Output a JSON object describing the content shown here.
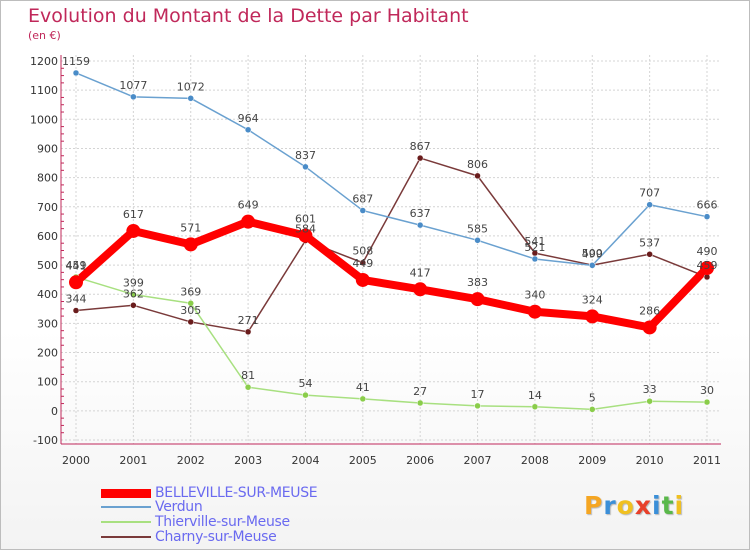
{
  "chart_data": {
    "type": "line",
    "title": "Evolution du Montant de la Dette par Habitant",
    "subtitle": "(en €)",
    "x": [
      "2000",
      "2001",
      "2002",
      "2003",
      "2004",
      "2005",
      "2006",
      "2007",
      "2008",
      "2009",
      "2010",
      "2011"
    ],
    "ylim": [
      -100,
      1200
    ],
    "yticks": [
      -100,
      0,
      100,
      200,
      300,
      400,
      500,
      600,
      700,
      800,
      900,
      1000,
      1100,
      1200
    ],
    "grid": true,
    "legend_position": "bottom-left",
    "series": [
      {
        "name": "BELLEVILLE-SUR-MEUSE",
        "color": "#ff0000",
        "values": [
          441,
          617,
          571,
          649,
          601,
          449,
          417,
          383,
          340,
          324,
          286,
          490
        ]
      },
      {
        "name": "Verdun",
        "color": "#6aa1d0",
        "values": [
          1159,
          1077,
          1072,
          964,
          837,
          687,
          637,
          585,
          521,
          499,
          707,
          666
        ]
      },
      {
        "name": "Thierville-sur-Meuse",
        "color": "#a8e080",
        "values": [
          459,
          399,
          369,
          81,
          54,
          41,
          27,
          17,
          14,
          5,
          33,
          30
        ]
      },
      {
        "name": "Charny-sur-Meuse",
        "color": "#7a3a3a",
        "values": [
          344,
          362,
          305,
          271,
          584,
          508,
          867,
          806,
          541,
          500,
          537,
          459
        ]
      }
    ]
  },
  "logo": {
    "text": "Proxiti",
    "letters": [
      {
        "ch": "P",
        "color": "#f5a623"
      },
      {
        "ch": "r",
        "color": "#3b8fd8"
      },
      {
        "ch": "o",
        "color": "#f0c020"
      },
      {
        "ch": "x",
        "color": "#e8402a"
      },
      {
        "ch": "i",
        "color": "#3b8fd8"
      },
      {
        "ch": "t",
        "color": "#5ab84a"
      },
      {
        "ch": "i",
        "color": "#f0c020"
      }
    ]
  }
}
